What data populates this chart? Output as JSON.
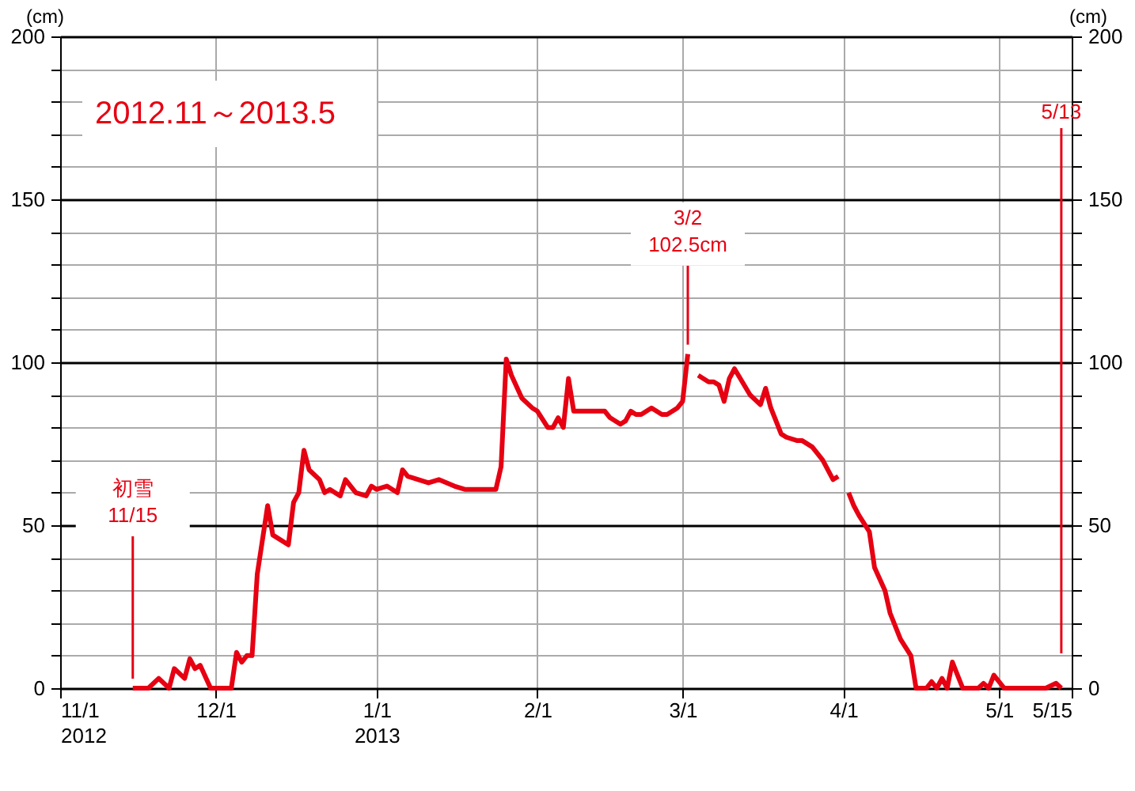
{
  "chart_data": {
    "type": "line",
    "title": "2012.11～2013.5",
    "ylabel": "(cm)",
    "y2label": "(cm)",
    "x": [
      "2012-11-15",
      "2012-11-18",
      "2012-11-20",
      "2012-11-22",
      "2012-11-23",
      "2012-11-25",
      "2012-11-26",
      "2012-11-27",
      "2012-11-28",
      "2012-11-30",
      "2012-12-04",
      "2012-12-05",
      "2012-12-06",
      "2012-12-07",
      "2012-12-08",
      "2012-12-09",
      "2012-12-11",
      "2012-12-12",
      "2012-12-15",
      "2012-12-16",
      "2012-12-17",
      "2012-12-18",
      "2012-12-19",
      "2012-12-21",
      "2012-12-22",
      "2012-12-23",
      "2012-12-25",
      "2012-12-26",
      "2012-12-28",
      "2012-12-30",
      "2012-12-31",
      "2013-01-01",
      "2013-01-03",
      "2013-01-05",
      "2013-01-06",
      "2013-01-07",
      "2013-01-11",
      "2013-01-13",
      "2013-01-16",
      "2013-01-18",
      "2013-01-24",
      "2013-01-25",
      "2013-01-26",
      "2013-01-27",
      "2013-01-29",
      "2013-01-31",
      "2013-02-01",
      "2013-02-03",
      "2013-02-04",
      "2013-02-05",
      "2013-02-06",
      "2013-02-07",
      "2013-02-08",
      "2013-02-14",
      "2013-02-15",
      "2013-02-17",
      "2013-02-18",
      "2013-02-19",
      "2013-02-20",
      "2013-02-21",
      "2013-02-23",
      "2013-02-25",
      "2013-02-26",
      "2013-02-28",
      "2013-03-01",
      "2013-03-02",
      "2013-03-03",
      "2013-03-04",
      "2013-03-06",
      "2013-03-07",
      "2013-03-08",
      "2013-03-09",
      "2013-03-10",
      "2013-03-11",
      "2013-03-14",
      "2013-03-16",
      "2013-03-17",
      "2013-03-18",
      "2013-03-20",
      "2013-03-21",
      "2013-03-23",
      "2013-03-24",
      "2013-03-26",
      "2013-03-28",
      "2013-03-30",
      "2013-03-31",
      "2013-04-01",
      "2013-04-02",
      "2013-04-03",
      "2013-04-04",
      "2013-04-06",
      "2013-04-07",
      "2013-04-09",
      "2013-04-10",
      "2013-04-12",
      "2013-04-14",
      "2013-04-15",
      "2013-04-17",
      "2013-04-18",
      "2013-04-19",
      "2013-04-20",
      "2013-04-21",
      "2013-04-22",
      "2013-04-24",
      "2013-04-27",
      "2013-04-28",
      "2013-04-29",
      "2013-04-30",
      "2013-05-02",
      "2013-05-10",
      "2013-05-12",
      "2013-05-13"
    ],
    "series": [
      {
        "color": "#e60012",
        "values": [
          0,
          0,
          3,
          0,
          6,
          3,
          9,
          6,
          7,
          0,
          0,
          11,
          8,
          10,
          10,
          35,
          56,
          47,
          44,
          57,
          60,
          73,
          67,
          64,
          60,
          61,
          59,
          64,
          60,
          59,
          62,
          61,
          62,
          60,
          67,
          65,
          63,
          64,
          62,
          61,
          61,
          68,
          101,
          96,
          89,
          86,
          85,
          80,
          80,
          83,
          80,
          95,
          85,
          85,
          83,
          81,
          82,
          85,
          84,
          84,
          86,
          84,
          84,
          86,
          88,
          102.5,
          null,
          96,
          94,
          94,
          93,
          88,
          95,
          98,
          90,
          87,
          92,
          86,
          78,
          77,
          76,
          76,
          74,
          70,
          64,
          65,
          null,
          60,
          56,
          53,
          48,
          37,
          30,
          23,
          15,
          10,
          0,
          0,
          2,
          0,
          3,
          0,
          8,
          0,
          0,
          1.5,
          0,
          4,
          0,
          0,
          1.5,
          0
        ]
      }
    ],
    "xlim": [
      "2012-11-01",
      "2013-05-15"
    ],
    "xticks": [
      {
        "value": "2012-11-01",
        "label": "11/1\n2012"
      },
      {
        "value": "2012-12-01",
        "label": "12/1"
      },
      {
        "value": "2013-01-01",
        "label": "1/1\n2013"
      },
      {
        "value": "2013-02-01",
        "label": "2/1"
      },
      {
        "value": "2013-03-01",
        "label": "3/1"
      },
      {
        "value": "2013-04-01",
        "label": "4/1"
      },
      {
        "value": "2013-05-01",
        "label": "5/1"
      },
      {
        "value": "2013-05-15",
        "label": "5/15"
      }
    ],
    "ylim": [
      0,
      200
    ],
    "y2lim": [
      0,
      200
    ],
    "yticks": [
      0,
      {
        "value": 10,
        "label": null
      },
      {
        "value": 20,
        "label": null
      },
      {
        "value": 30,
        "label": null
      },
      {
        "value": 40,
        "label": null
      },
      50,
      {
        "value": 60,
        "label": null
      },
      {
        "value": 70,
        "label": null
      },
      {
        "value": 80,
        "label": null
      },
      {
        "value": 90,
        "label": null
      },
      100,
      {
        "value": 110,
        "label": null
      },
      {
        "value": 120,
        "label": null
      },
      {
        "value": 130,
        "label": null
      },
      {
        "value": 140,
        "label": null
      },
      150,
      {
        "value": 160,
        "label": null
      },
      {
        "value": 170,
        "label": null
      },
      {
        "value": 180,
        "label": null
      },
      {
        "value": 190,
        "label": null
      },
      200
    ],
    "y2ticks": [
      0,
      {
        "value": 10,
        "label": null
      },
      {
        "value": 20,
        "label": null
      },
      {
        "value": 30,
        "label": null
      },
      {
        "value": 40,
        "label": null
      },
      50,
      {
        "value": 60,
        "label": null
      },
      {
        "value": 70,
        "label": null
      },
      {
        "value": 80,
        "label": null
      },
      {
        "value": 90,
        "label": null
      },
      100,
      {
        "value": 110,
        "label": null
      },
      {
        "value": 120,
        "label": null
      },
      {
        "value": 130,
        "label": null
      },
      {
        "value": 140,
        "label": null
      },
      150,
      {
        "value": 160,
        "label": null
      },
      {
        "value": 170,
        "label": null
      },
      {
        "value": 180,
        "label": null
      },
      {
        "value": 190,
        "label": null
      },
      200
    ],
    "grid": true,
    "marker": "none",
    "line_style": "solid",
    "annotations": [
      {
        "text": "初雪\n11/15",
        "x": "2012-11-15",
        "y": 0
      },
      {
        "text": "3/2\n102.5cm",
        "x": "2013-03-02",
        "y": 102.5
      }
    ],
    "ref_lines": [
      {
        "axis": "x",
        "value": "2013-05-13",
        "label": "5/13",
        "color": "#e60012"
      }
    ]
  }
}
